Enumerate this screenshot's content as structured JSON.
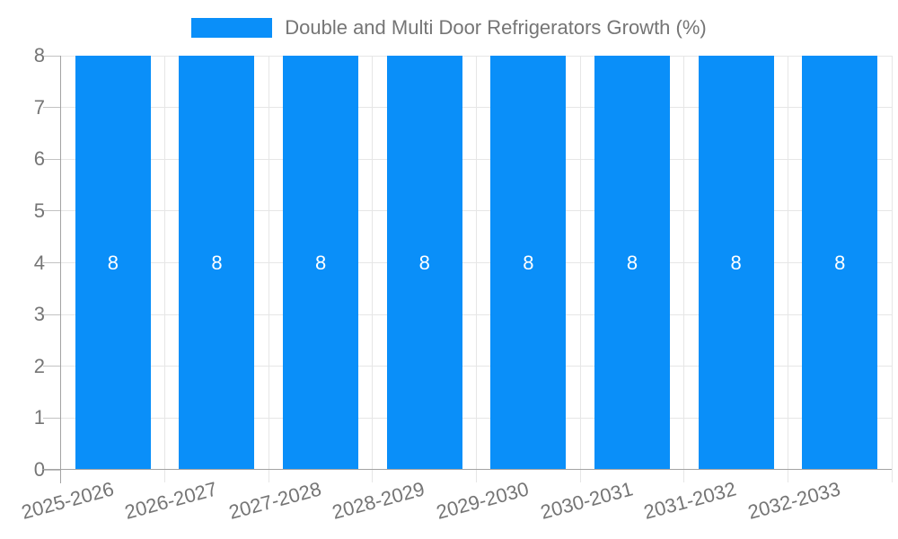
{
  "legend": {
    "series_label": "Double and Multi Door Refrigerators Growth (%)",
    "swatch_color": "#0A8FF9"
  },
  "chart_data": {
    "type": "bar",
    "title": "Double and Multi Door Refrigerators Growth (%)",
    "categories": [
      "2025-2026",
      "2026-2027",
      "2027-2028",
      "2028-2029",
      "2029-2030",
      "2030-2031",
      "2031-2032",
      "2032-2033"
    ],
    "series": [
      {
        "name": "Double and Multi Door Refrigerators Growth (%)",
        "values": [
          8,
          8,
          8,
          8,
          8,
          8,
          8,
          8
        ]
      }
    ],
    "data_labels": [
      "8",
      "8",
      "8",
      "8",
      "8",
      "8",
      "8",
      "8"
    ],
    "xlabel": "",
    "ylabel": "",
    "ylim": [
      0,
      8
    ],
    "yticks": [
      0,
      1,
      2,
      3,
      4,
      5,
      6,
      7,
      8
    ],
    "grid": true,
    "legend_position": "top",
    "bar_color": "#0A8FF9",
    "data_label_color": "#FFFFFF"
  },
  "colors": {
    "background": "#FFFFFF",
    "bar": "#0A8FF9",
    "label_text": "#757575",
    "gridline": "#E6E6E6",
    "tick": "#C2C2C2",
    "axis_line": "#A3A3A3",
    "data_label": "#FFFFFF"
  }
}
